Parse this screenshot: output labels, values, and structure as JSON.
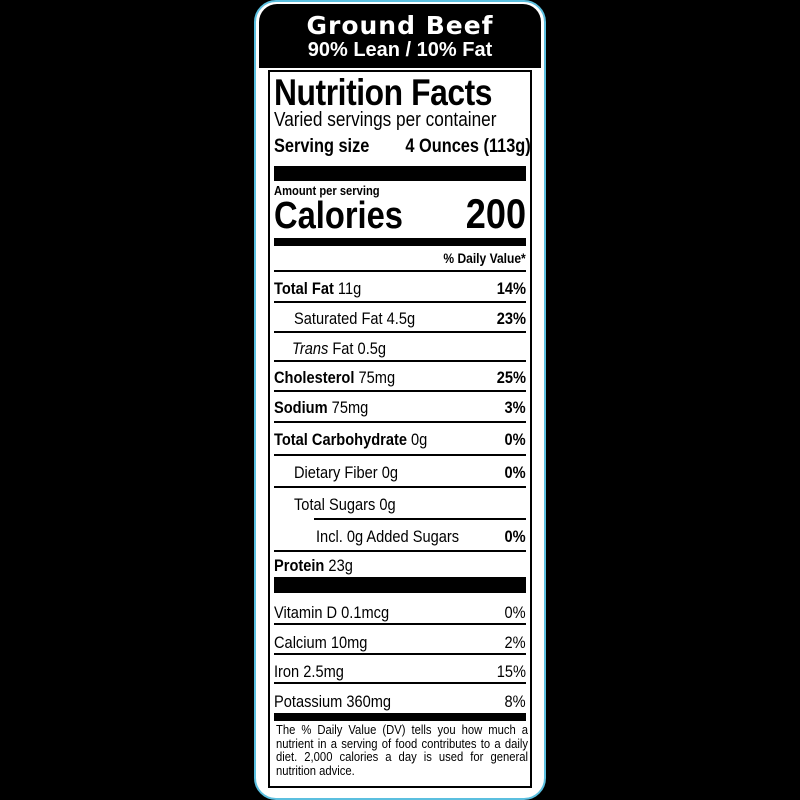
{
  "header": {
    "product": "Ground Beef",
    "variant": "90% Lean / 10% Fat"
  },
  "title": "Nutrition Facts",
  "servings": "Varied servings per container",
  "serving_size_label": "Serving size",
  "serving_size_value": "4 Ounces (113g)",
  "amount_per_serving": "Amount per serving",
  "calories_label": "Calories",
  "calories_value": "200",
  "dv_header": "% Daily Value*",
  "nutrients": [
    {
      "name": "Total Fat",
      "amount": "11g",
      "dv": "14%"
    },
    {
      "name": "Saturated Fat",
      "amount": "4.5g",
      "dv": "23%"
    },
    {
      "name": "Trans",
      "name2": "Fat",
      "amount": "0.5g",
      "dv": ""
    },
    {
      "name": "Cholesterol",
      "amount": "75mg",
      "dv": "25%"
    },
    {
      "name": "Sodium",
      "amount": "75mg",
      "dv": "3%"
    },
    {
      "name": "Total Carbohydrate",
      "amount": "0g",
      "dv": "0%"
    },
    {
      "name": "Dietary Fiber",
      "amount": "0g",
      "dv": "0%"
    },
    {
      "name": "Total Sugars",
      "amount": "0g",
      "dv": ""
    },
    {
      "name": "Incl. 0g Added Sugars",
      "amount": "",
      "dv": "0%"
    },
    {
      "name": "Protein",
      "amount": "23g",
      "dv": ""
    }
  ],
  "vitamins": [
    {
      "name": "Vitamin D 0.1mcg",
      "dv": "0%"
    },
    {
      "name": "Calcium 10mg",
      "dv": "2%"
    },
    {
      "name": "Iron 2.5mg",
      "dv": "15%"
    },
    {
      "name": "Potassium 360mg",
      "dv": "8%"
    }
  ],
  "footnote": "The % Daily Value (DV) tells you how much a nutrient in a serving of food contributes to a daily diet. 2,000 calories a day is used for general nutrition advice.",
  "colors": {
    "border": "#5bbfdf",
    "ink": "#000000",
    "background": "#000000"
  }
}
